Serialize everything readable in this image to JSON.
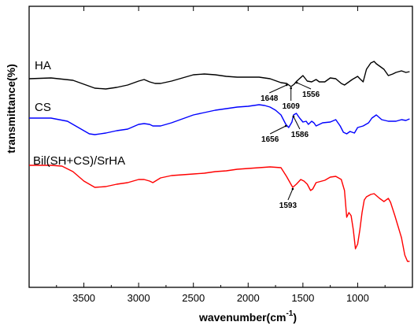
{
  "chart_data": {
    "type": "line",
    "xlabel_main": "wavenumber(cm",
    "xlabel_sup": "-1",
    "xlabel_close": ")",
    "ylabel": "transmittance(%)",
    "xlim": [
      4000,
      500
    ],
    "x_reversed": true,
    "grid": false,
    "x_ticks": [
      3500,
      3000,
      2500,
      2000,
      1500,
      1000
    ],
    "x_tick_labels": [
      "3500",
      "3000",
      "2500",
      "2000",
      "1500",
      "1000"
    ],
    "y_ticks_shown": false,
    "series": [
      {
        "name": "HA",
        "color": "#000000",
        "offset": 60,
        "points": [
          [
            4000,
            2
          ],
          [
            3800,
            1
          ],
          [
            3600,
            4
          ],
          [
            3500,
            9
          ],
          [
            3400,
            14
          ],
          [
            3300,
            15
          ],
          [
            3200,
            13
          ],
          [
            3100,
            10
          ],
          [
            3000,
            5
          ],
          [
            2950,
            3
          ],
          [
            2900,
            6
          ],
          [
            2850,
            8
          ],
          [
            2800,
            8
          ],
          [
            2700,
            5
          ],
          [
            2600,
            1
          ],
          [
            2500,
            -3
          ],
          [
            2400,
            -4
          ],
          [
            2300,
            -3
          ],
          [
            2200,
            -1
          ],
          [
            2100,
            0
          ],
          [
            2000,
            0
          ],
          [
            1900,
            0
          ],
          [
            1800,
            2
          ],
          [
            1700,
            7
          ],
          [
            1648,
            8
          ],
          [
            1609,
            12
          ],
          [
            1580,
            9
          ],
          [
            1556,
            5
          ],
          [
            1500,
            -2
          ],
          [
            1460,
            5
          ],
          [
            1420,
            6
          ],
          [
            1380,
            3
          ],
          [
            1350,
            6
          ],
          [
            1300,
            6
          ],
          [
            1250,
            1
          ],
          [
            1200,
            2
          ],
          [
            1150,
            8
          ],
          [
            1120,
            10
          ],
          [
            1100,
            8
          ],
          [
            1050,
            3
          ],
          [
            1000,
            -1
          ],
          [
            980,
            2
          ],
          [
            950,
            6
          ],
          [
            920,
            -10
          ],
          [
            880,
            -18
          ],
          [
            850,
            -20
          ],
          [
            830,
            -17
          ],
          [
            800,
            -14
          ],
          [
            760,
            -10
          ],
          [
            720,
            -2
          ],
          [
            680,
            -4
          ],
          [
            650,
            -6
          ],
          [
            600,
            -8
          ],
          [
            560,
            -6
          ],
          [
            526,
            -7
          ]
        ]
      },
      {
        "name": "CS",
        "color": "#0000ff",
        "offset": 0,
        "points": [
          [
            4000,
            -2
          ],
          [
            3800,
            -2
          ],
          [
            3650,
            2
          ],
          [
            3550,
            10
          ],
          [
            3450,
            18
          ],
          [
            3400,
            19
          ],
          [
            3300,
            17
          ],
          [
            3200,
            14
          ],
          [
            3100,
            12
          ],
          [
            3000,
            6
          ],
          [
            2950,
            5
          ],
          [
            2900,
            6
          ],
          [
            2870,
            8
          ],
          [
            2800,
            8
          ],
          [
            2700,
            4
          ],
          [
            2600,
            -1
          ],
          [
            2500,
            -6
          ],
          [
            2400,
            -9
          ],
          [
            2300,
            -12
          ],
          [
            2200,
            -14
          ],
          [
            2100,
            -16
          ],
          [
            2000,
            -17
          ],
          [
            1900,
            -19
          ],
          [
            1850,
            -18
          ],
          [
            1800,
            -16
          ],
          [
            1750,
            -12
          ],
          [
            1700,
            -6
          ],
          [
            1656,
            6
          ],
          [
            1630,
            10
          ],
          [
            1600,
            3
          ],
          [
            1586,
            -6
          ],
          [
            1560,
            -8
          ],
          [
            1530,
            -2
          ],
          [
            1500,
            3
          ],
          [
            1470,
            2
          ],
          [
            1450,
            6
          ],
          [
            1420,
            2
          ],
          [
            1400,
            4
          ],
          [
            1380,
            8
          ],
          [
            1320,
            4
          ],
          [
            1250,
            3
          ],
          [
            1200,
            0
          ],
          [
            1160,
            8
          ],
          [
            1130,
            16
          ],
          [
            1100,
            18
          ],
          [
            1070,
            15
          ],
          [
            1030,
            17
          ],
          [
            1000,
            10
          ],
          [
            950,
            8
          ],
          [
            900,
            4
          ],
          [
            870,
            -2
          ],
          [
            830,
            -6
          ],
          [
            780,
            0
          ],
          [
            720,
            2
          ],
          [
            650,
            2
          ],
          [
            600,
            0
          ],
          [
            560,
            1
          ],
          [
            526,
            -1
          ]
        ]
      },
      {
        "name": "Bil(SH+CS)/SrHA",
        "color": "#ff0000",
        "offset": -64,
        "points": [
          [
            4000,
            -2
          ],
          [
            3800,
            -2
          ],
          [
            3700,
            -1
          ],
          [
            3600,
            6
          ],
          [
            3500,
            18
          ],
          [
            3400,
            26
          ],
          [
            3300,
            25
          ],
          [
            3200,
            22
          ],
          [
            3100,
            20
          ],
          [
            3000,
            16
          ],
          [
            2950,
            16
          ],
          [
            2900,
            18
          ],
          [
            2870,
            20
          ],
          [
            2800,
            14
          ],
          [
            2700,
            11
          ],
          [
            2600,
            10
          ],
          [
            2500,
            9
          ],
          [
            2400,
            8
          ],
          [
            2300,
            6
          ],
          [
            2200,
            5
          ],
          [
            2100,
            3
          ],
          [
            2000,
            2
          ],
          [
            1900,
            1
          ],
          [
            1800,
            0
          ],
          [
            1700,
            1
          ],
          [
            1650,
            12
          ],
          [
            1593,
            26
          ],
          [
            1560,
            22
          ],
          [
            1520,
            16
          ],
          [
            1490,
            18
          ],
          [
            1460,
            22
          ],
          [
            1430,
            30
          ],
          [
            1410,
            28
          ],
          [
            1380,
            20
          ],
          [
            1300,
            17
          ],
          [
            1250,
            13
          ],
          [
            1200,
            12
          ],
          [
            1150,
            16
          ],
          [
            1120,
            30
          ],
          [
            1100,
            64
          ],
          [
            1080,
            58
          ],
          [
            1060,
            62
          ],
          [
            1040,
            80
          ],
          [
            1020,
            104
          ],
          [
            1000,
            98
          ],
          [
            980,
            80
          ],
          [
            960,
            58
          ],
          [
            940,
            42
          ],
          [
            920,
            38
          ],
          [
            880,
            35
          ],
          [
            850,
            34
          ],
          [
            800,
            40
          ],
          [
            760,
            44
          ],
          [
            720,
            40
          ],
          [
            700,
            45
          ],
          [
            660,
            62
          ],
          [
            630,
            76
          ],
          [
            600,
            90
          ],
          [
            570,
            112
          ],
          [
            545,
            120
          ],
          [
            526,
            120
          ]
        ]
      }
    ],
    "annotations": [
      {
        "text": "1648",
        "series": 0,
        "x": 1648
      },
      {
        "text": "1609",
        "series": 0,
        "x": 1609
      },
      {
        "text": "1556",
        "series": 0,
        "x": 1556
      },
      {
        "text": "1656",
        "series": 1,
        "x": 1656
      },
      {
        "text": "1586",
        "series": 1,
        "x": 1586
      },
      {
        "text": "1593",
        "series": 2,
        "x": 1593
      }
    ]
  }
}
